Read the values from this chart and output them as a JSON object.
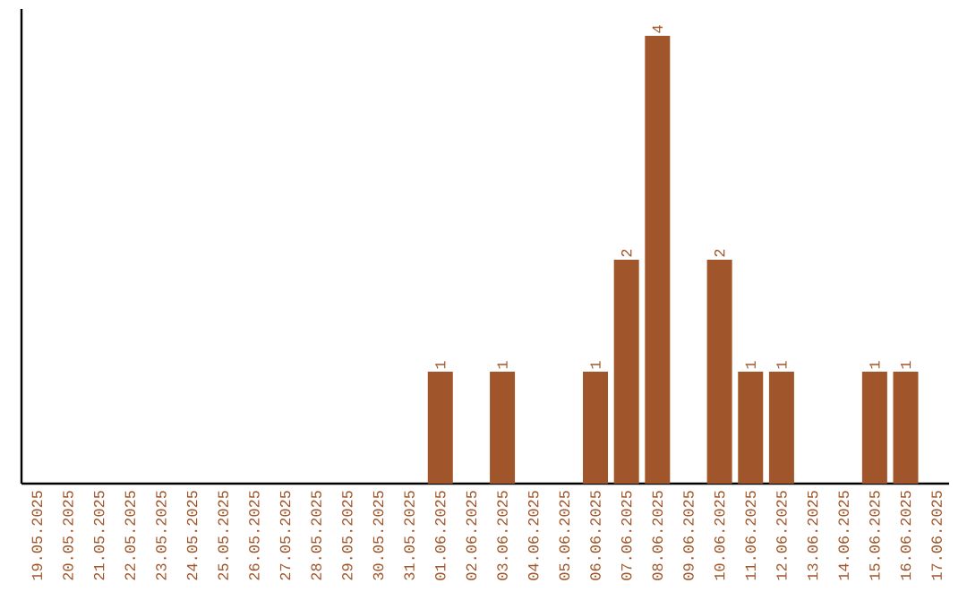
{
  "chart_data": {
    "type": "bar",
    "categories": [
      "19.05.2025",
      "20.05.2025",
      "21.05.2025",
      "22.05.2025",
      "23.05.2025",
      "24.05.2025",
      "25.05.2025",
      "26.05.2025",
      "27.05.2025",
      "28.05.2025",
      "29.05.2025",
      "30.05.2025",
      "31.05.2025",
      "01.06.2025",
      "02.06.2025",
      "03.06.2025",
      "04.06.2025",
      "05.06.2025",
      "06.06.2025",
      "07.06.2025",
      "08.06.2025",
      "09.06.2025",
      "10.06.2025",
      "11.06.2025",
      "12.06.2025",
      "13.06.2025",
      "14.06.2025",
      "15.06.2025",
      "16.06.2025",
      "17.06.2025"
    ],
    "values": [
      null,
      null,
      null,
      null,
      null,
      null,
      null,
      null,
      null,
      null,
      null,
      null,
      null,
      1,
      null,
      1,
      null,
      null,
      1,
      2,
      4,
      null,
      2,
      1,
      1,
      null,
      null,
      1,
      1,
      null
    ],
    "data_labels": true,
    "color": "#a0562a",
    "grid": false
  }
}
